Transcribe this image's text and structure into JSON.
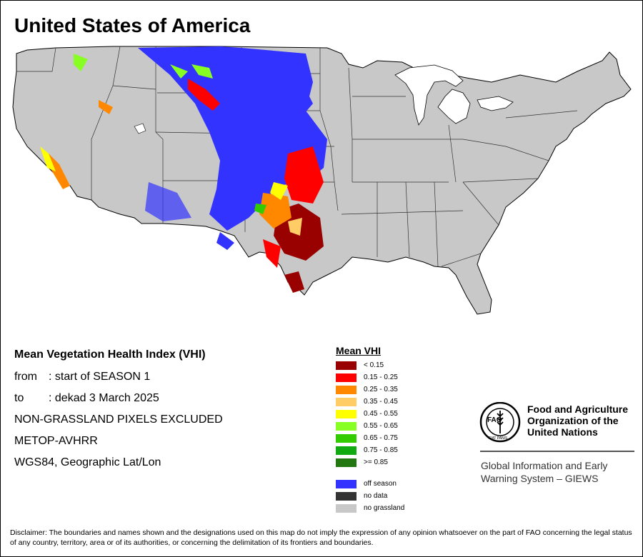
{
  "map": {
    "title": "United States of America"
  },
  "info": {
    "heading": "Mean Vegetation Health Index (VHI)",
    "from_label": "from",
    "from_value": ": start of SEASON 1",
    "to_label": "to",
    "to_value": ": dekad 3 March 2025",
    "exclusion": "NON-GRASSLAND PIXELS EXCLUDED",
    "sensor": "METOP-AVHRR",
    "projection": "WGS84, Geographic Lat/Lon"
  },
  "legend": {
    "title": "Mean VHI",
    "classes": [
      {
        "label": "< 0.15",
        "color": "#990000"
      },
      {
        "label": "0.15 - 0.25",
        "color": "#ff0000"
      },
      {
        "label": "0.25 - 0.35",
        "color": "#ff8800"
      },
      {
        "label": "0.35 - 0.45",
        "color": "#ffcc66"
      },
      {
        "label": "0.45 - 0.55",
        "color": "#ffff00"
      },
      {
        "label": "0.55 - 0.65",
        "color": "#88ff22"
      },
      {
        "label": "0.65 - 0.75",
        "color": "#33cc00"
      },
      {
        "label": "0.75 - 0.85",
        "color": "#11aa11"
      },
      {
        "label": ">= 0.85",
        "color": "#227711"
      }
    ],
    "extra": [
      {
        "label": "off season",
        "color": "#3333ff"
      },
      {
        "label": "no data",
        "color": "#333333"
      },
      {
        "label": "no grassland",
        "color": "#c8c8c8"
      }
    ]
  },
  "fao": {
    "line1": "Food and Agriculture",
    "line2": "Organization of the",
    "line3": "United Nations",
    "logo_text": "FAO",
    "logo_motto": "FIAT PANIS"
  },
  "giews": {
    "line1": "Global Information and Early",
    "line2": "Warning System – GIEWS"
  },
  "disclaimer": "Disclaimer: The boundaries and names shown and the designations used on this map do not imply the expression of any opinion whatsoever on the part of FAO concerning the legal status of any country, territory, area or of its authorities, or concerning the delimitation of its frontiers and boundaries.",
  "colors": {
    "land": "#c8c8c8",
    "border": "#000000",
    "off_season": "#3333ff"
  }
}
